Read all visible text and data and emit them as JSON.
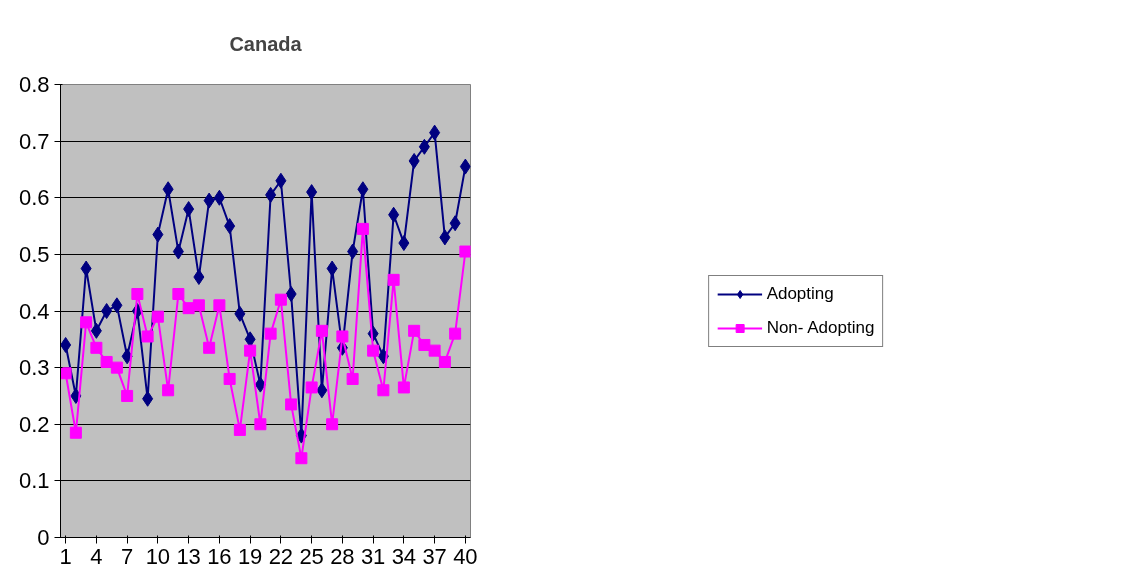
{
  "chart_data": {
    "type": "line",
    "title": "Canada",
    "categories": [
      "1",
      null,
      null,
      "4",
      null,
      null,
      "7",
      null,
      null,
      "10",
      null,
      null,
      "13",
      null,
      null,
      "16",
      null,
      null,
      "19",
      null,
      null,
      "22",
      null,
      null,
      "25",
      null,
      null,
      "28",
      null,
      null,
      "31",
      null,
      null,
      "34",
      null,
      null,
      "37",
      null,
      null,
      "40"
    ],
    "series": [
      {
        "name": "Adopting",
        "color": "#000080",
        "marker": "diamond",
        "values": [
          0.34,
          0.25,
          0.475,
          0.365,
          0.4,
          0.41,
          0.32,
          0.4,
          0.245,
          0.535,
          0.615,
          0.505,
          0.58,
          0.46,
          0.595,
          0.6,
          0.55,
          0.395,
          0.35,
          0.27,
          0.605,
          0.63,
          0.43,
          0.18,
          0.61,
          0.26,
          0.475,
          0.335,
          0.505,
          0.615,
          0.36,
          0.32,
          0.57,
          0.52,
          0.665,
          0.69,
          0.715,
          0.53,
          0.555,
          0.655
        ]
      },
      {
        "name": "Non- Adopting",
        "color": "#ff00ff",
        "marker": "square",
        "values": [
          0.29,
          0.185,
          0.38,
          0.335,
          0.31,
          0.3,
          0.25,
          0.43,
          0.355,
          0.39,
          0.26,
          0.43,
          0.405,
          0.41,
          0.335,
          0.41,
          0.28,
          0.19,
          0.33,
          0.2,
          0.36,
          0.42,
          0.235,
          0.14,
          0.265,
          0.365,
          0.2,
          0.355,
          0.28,
          0.545,
          0.33,
          0.26,
          0.455,
          0.265,
          0.365,
          0.34,
          0.33,
          0.31,
          0.36,
          0.505
        ]
      }
    ],
    "ylim": [
      0,
      0.8
    ],
    "yticks": [
      0,
      0.1,
      0.2,
      0.3,
      0.4,
      0.5,
      0.6,
      0.7,
      0.8
    ],
    "grid": "y",
    "legend": "right"
  }
}
